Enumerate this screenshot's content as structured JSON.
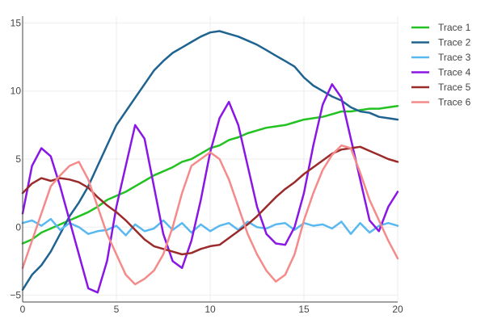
{
  "chart_data": {
    "type": "line",
    "title": "",
    "xlabel": "",
    "ylabel": "",
    "xlim": [
      0,
      20
    ],
    "ylim": [
      -5.5,
      15.5
    ],
    "x_ticks": [
      0,
      5,
      10,
      15,
      20
    ],
    "y_ticks": [
      -5,
      0,
      5,
      10,
      15
    ],
    "grid": true,
    "legend_position": "top-right",
    "series": [
      {
        "name": "Trace 1",
        "color": "#22c222",
        "x": [
          0,
          0.5,
          1,
          1.5,
          2,
          2.5,
          3,
          3.5,
          4,
          4.5,
          5,
          5.5,
          6,
          6.5,
          7,
          7.5,
          8,
          8.5,
          9,
          9.5,
          10,
          10.5,
          11,
          11.5,
          12,
          12.5,
          13,
          13.5,
          14,
          14.5,
          15,
          15.5,
          16,
          16.5,
          17,
          17.5,
          18,
          18.5,
          19,
          19.5,
          20
        ],
        "y": [
          -1.2,
          -0.9,
          -0.4,
          -0.1,
          0.2,
          0.5,
          0.8,
          1.1,
          1.5,
          2.0,
          2.3,
          2.6,
          3.0,
          3.4,
          3.8,
          4.1,
          4.4,
          4.8,
          5.0,
          5.4,
          5.8,
          6.0,
          6.4,
          6.6,
          6.9,
          7.1,
          7.3,
          7.4,
          7.5,
          7.7,
          7.9,
          8.0,
          8.1,
          8.3,
          8.5,
          8.5,
          8.6,
          8.7,
          8.7,
          8.8,
          8.9
        ]
      },
      {
        "name": "Trace 2",
        "color": "#1f6391",
        "x": [
          0,
          0.5,
          1,
          1.5,
          2,
          2.5,
          3,
          3.5,
          4,
          4.5,
          5,
          5.5,
          6,
          6.5,
          7,
          7.5,
          8,
          8.5,
          9,
          9.5,
          10,
          10.5,
          11,
          11.5,
          12,
          12.5,
          13,
          13.5,
          14,
          14.5,
          15,
          15.5,
          16,
          16.5,
          17,
          17.5,
          18,
          18.5,
          19,
          19.5,
          20
        ],
        "y": [
          -4.6,
          -3.5,
          -2.8,
          -1.8,
          -0.5,
          0.8,
          1.8,
          3.0,
          4.5,
          6.0,
          7.5,
          8.5,
          9.5,
          10.5,
          11.5,
          12.2,
          12.8,
          13.2,
          13.6,
          14.0,
          14.3,
          14.4,
          14.2,
          14.0,
          13.7,
          13.4,
          13.0,
          12.6,
          12.2,
          11.8,
          11.0,
          10.4,
          10.0,
          9.6,
          9.3,
          8.8,
          8.5,
          8.4,
          8.1,
          8.0,
          7.9
        ]
      },
      {
        "name": "Trace 3",
        "color": "#5ab8f0",
        "x": [
          0,
          0.5,
          1,
          1.5,
          2,
          2.5,
          3,
          3.5,
          4,
          4.5,
          5,
          5.5,
          6,
          6.5,
          7,
          7.5,
          8,
          8.5,
          9,
          9.5,
          10,
          10.5,
          11,
          11.5,
          12,
          12.5,
          13,
          13.5,
          14,
          14.5,
          15,
          15.5,
          16,
          16.5,
          17,
          17.5,
          18,
          18.5,
          19,
          19.5,
          20
        ],
        "y": [
          0.3,
          0.5,
          0.1,
          0.6,
          -0.2,
          0.3,
          0.0,
          -0.5,
          -0.3,
          -0.2,
          0.1,
          -0.6,
          0.2,
          -0.3,
          -0.1,
          0.5,
          -0.2,
          0.3,
          -0.4,
          0.2,
          -0.3,
          0.1,
          0.3,
          -0.2,
          0.4,
          0.0,
          -0.1,
          0.2,
          0.3,
          -0.2,
          0.3,
          0.1,
          0.2,
          -0.1,
          0.4,
          -0.5,
          0.3,
          -0.4,
          0.1,
          0.3,
          0.1
        ]
      },
      {
        "name": "Trace 4",
        "color": "#8a16e6",
        "x": [
          0,
          0.5,
          1,
          1.5,
          2,
          2.5,
          3,
          3.5,
          4,
          4.5,
          5,
          5.5,
          6,
          6.5,
          7,
          7.5,
          8,
          8.5,
          9,
          9.5,
          10,
          10.5,
          11,
          11.5,
          12,
          12.5,
          13,
          13.5,
          14,
          14.5,
          15,
          15.5,
          16,
          16.5,
          17,
          17.5,
          18,
          18.5,
          19,
          19.5,
          20
        ],
        "y": [
          1.0,
          4.5,
          5.8,
          5.2,
          3.0,
          0.5,
          -2.0,
          -4.5,
          -4.8,
          -2.5,
          1.5,
          4.5,
          7.5,
          6.5,
          3.0,
          -0.5,
          -2.5,
          -3.0,
          -1.0,
          2.0,
          5.5,
          8.0,
          9.2,
          7.5,
          4.5,
          1.5,
          -0.5,
          -1.2,
          -1.3,
          0.0,
          2.5,
          6.0,
          9.0,
          10.5,
          9.5,
          6.5,
          3.5,
          0.5,
          -0.3,
          1.5,
          2.6
        ]
      },
      {
        "name": "Trace 5",
        "color": "#9b2a2a",
        "x": [
          0,
          0.5,
          1,
          1.5,
          2,
          2.5,
          3,
          3.5,
          4,
          4.5,
          5,
          5.5,
          6,
          6.5,
          7,
          7.5,
          8,
          8.5,
          9,
          9.5,
          10,
          10.5,
          11,
          11.5,
          12,
          12.5,
          13,
          13.5,
          14,
          14.5,
          15,
          15.5,
          16,
          16.5,
          17,
          17.5,
          18,
          18.5,
          19,
          19.5,
          20
        ],
        "y": [
          2.5,
          3.2,
          3.6,
          3.4,
          3.6,
          3.5,
          3.3,
          2.9,
          2.2,
          1.6,
          1.1,
          0.5,
          -0.2,
          -0.9,
          -1.4,
          -1.6,
          -1.8,
          -2.0,
          -1.9,
          -1.6,
          -1.4,
          -1.3,
          -0.8,
          -0.3,
          0.2,
          0.8,
          1.5,
          2.2,
          2.8,
          3.3,
          3.9,
          4.4,
          4.9,
          5.4,
          5.7,
          5.8,
          5.9,
          5.6,
          5.3,
          5.0,
          4.8
        ]
      },
      {
        "name": "Trace 6",
        "color": "#f58a8a",
        "x": [
          0,
          0.5,
          1,
          1.5,
          2,
          2.5,
          3,
          3.5,
          4,
          4.5,
          5,
          5.5,
          6,
          6.5,
          7,
          7.5,
          8,
          8.5,
          9,
          9.5,
          10,
          10.5,
          11,
          11.5,
          12,
          12.5,
          13,
          13.5,
          14,
          14.5,
          15,
          15.5,
          16,
          16.5,
          17,
          17.5,
          18,
          18.5,
          19,
          19.5,
          20
        ],
        "y": [
          -3.0,
          -1.0,
          1.0,
          3.0,
          3.8,
          4.5,
          4.8,
          3.5,
          1.5,
          -0.5,
          -2.0,
          -3.5,
          -4.2,
          -3.8,
          -3.2,
          -2.0,
          0.0,
          2.5,
          4.5,
          5.0,
          5.5,
          5.0,
          3.5,
          1.5,
          -0.5,
          -2.0,
          -3.2,
          -4.0,
          -3.5,
          -2.0,
          0.5,
          2.5,
          4.2,
          5.3,
          6.0,
          5.8,
          4.0,
          2.0,
          0.5,
          -1.0,
          -2.3
        ]
      }
    ]
  }
}
